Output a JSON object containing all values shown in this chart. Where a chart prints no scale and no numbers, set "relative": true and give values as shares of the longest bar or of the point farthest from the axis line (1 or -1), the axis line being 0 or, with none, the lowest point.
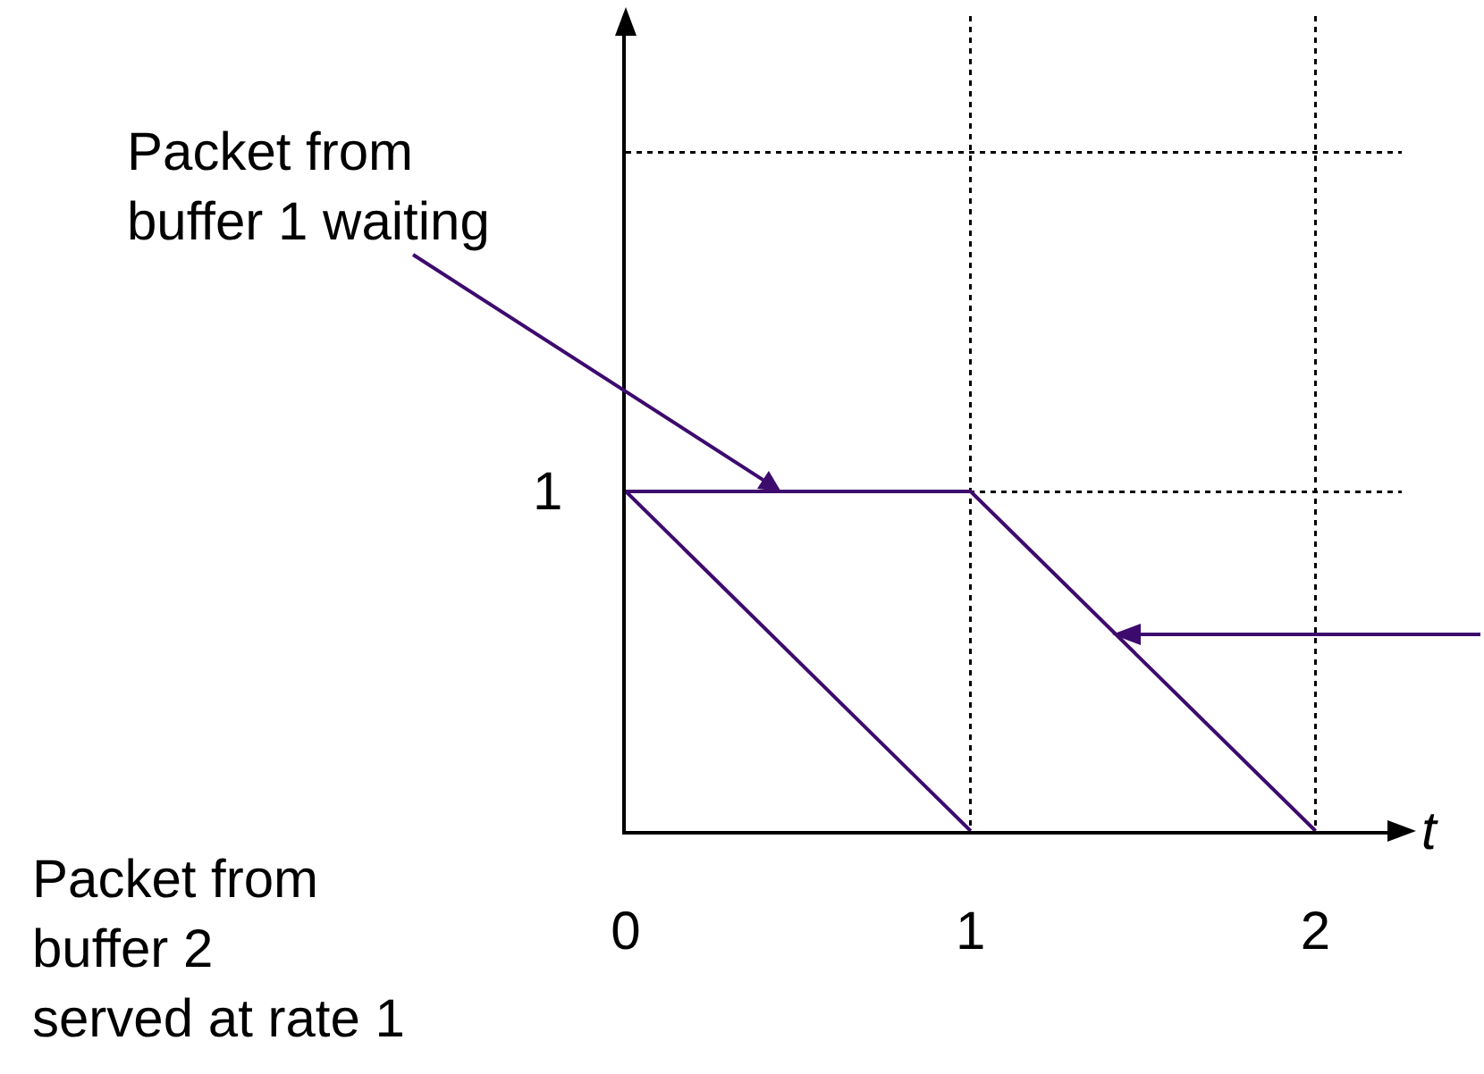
{
  "chart_data": {
    "type": "line",
    "xlabel": "t",
    "xlim": [
      0,
      2.25
    ],
    "relative": true,
    "xticks": [
      0,
      1,
      2
    ],
    "grid": true,
    "legend": false,
    "marker": "none",
    "line_style": "solid",
    "series": [
      {
        "color": "#3d0a6e",
        "x": [
          0,
          1
        ],
        "values": [
          1,
          0
        ]
      },
      {
        "color": "#3d0a6e",
        "x": [
          0,
          1,
          2
        ],
        "values": [
          1,
          1,
          0
        ]
      }
    ],
    "annotations": [
      {
        "text": "Packet from\nbuffer 1 waiting",
        "x": 0.45,
        "y": 1
      },
      "Packet from\nbuffer 2\nserved at rate 1",
      "1"
    ]
  }
}
